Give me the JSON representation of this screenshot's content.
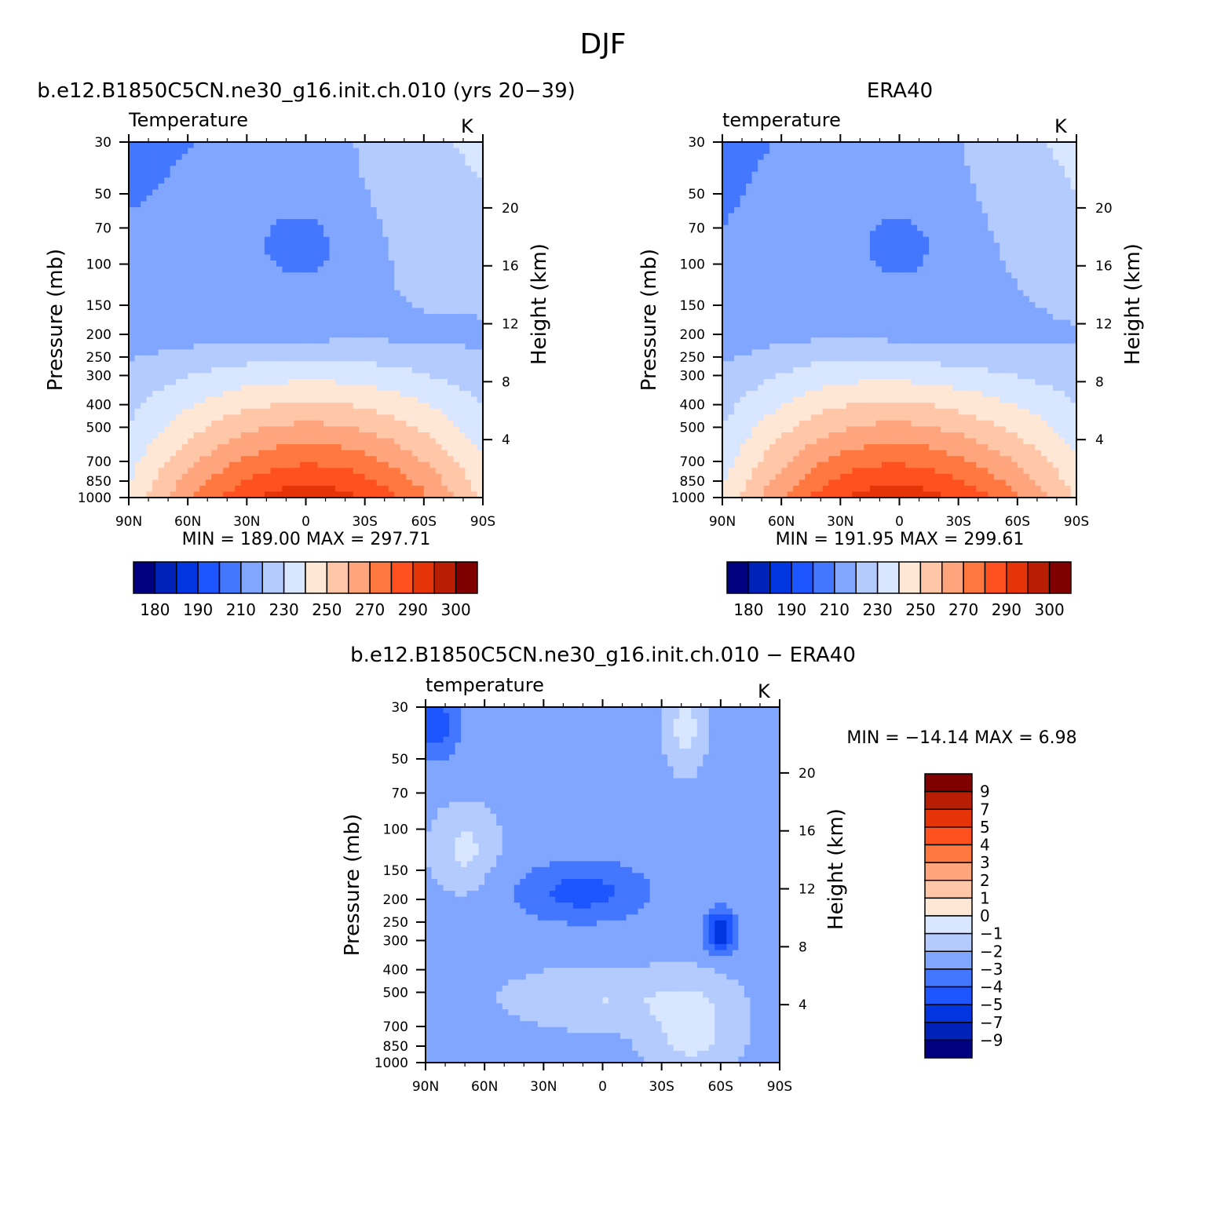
{
  "figure": {
    "title": "DJF"
  },
  "chart_data": [
    {
      "type": "heatmap",
      "panel_title": "b.e12.B1850C5CN.ne30_g16.init.ch.010 (yrs 20−39)",
      "left_label": "Temperature",
      "right_label": "K",
      "xlabel": "",
      "ylabel": "Pressure (mb)",
      "y2label": "Height (km)",
      "x_ticks": [
        "90N",
        "60N",
        "30N",
        "0",
        "30S",
        "60S",
        "90S"
      ],
      "x_range": [
        90,
        -90
      ],
      "y_ticks": [
        "30",
        "50",
        "70",
        "100",
        "150",
        "200",
        "250",
        "300",
        "400",
        "500",
        "700",
        "850",
        "1000"
      ],
      "y_range_mb": [
        30,
        1000
      ],
      "y_scale": "log",
      "y2_ticks": [
        "20",
        "16",
        "12",
        "8",
        "4"
      ],
      "stats": "MIN =  189.00   MAX =  297.71",
      "colorbar": {
        "orientation": "horizontal",
        "levels": [
          180,
          185,
          190,
          200,
          210,
          220,
          230,
          240,
          250,
          260,
          270,
          280,
          290,
          295,
          300
        ],
        "labels": [
          "180",
          "190",
          "210",
          "230",
          "250",
          "270",
          "290",
          "300"
        ],
        "colors": [
          "#000080",
          "#0022b8",
          "#0035e0",
          "#1d55ff",
          "#4477ff",
          "#80a6ff",
          "#b3cbff",
          "#d9e6ff",
          "#ffe7d6",
          "#ffc6a8",
          "#ffa57d",
          "#ff7840",
          "#ff5020",
          "#e43408",
          "#b81e04",
          "#800000"
        ]
      }
    },
    {
      "type": "heatmap",
      "panel_title": "ERA40",
      "left_label": "temperature",
      "right_label": "K",
      "xlabel": "",
      "ylabel": "Pressure (mb)",
      "y2label": "Height (km)",
      "x_ticks": [
        "90N",
        "60N",
        "30N",
        "0",
        "30S",
        "60S",
        "90S"
      ],
      "x_range": [
        90,
        -90
      ],
      "y_ticks": [
        "30",
        "50",
        "70",
        "100",
        "150",
        "200",
        "250",
        "300",
        "400",
        "500",
        "700",
        "850",
        "1000"
      ],
      "y_range_mb": [
        30,
        1000
      ],
      "y_scale": "log",
      "y2_ticks": [
        "20",
        "16",
        "12",
        "8",
        "4"
      ],
      "stats": "MIN =  191.95   MAX =  299.61",
      "colorbar": {
        "orientation": "horizontal",
        "levels": [
          180,
          185,
          190,
          200,
          210,
          220,
          230,
          240,
          250,
          260,
          270,
          280,
          290,
          295,
          300
        ],
        "labels": [
          "180",
          "190",
          "210",
          "230",
          "250",
          "270",
          "290",
          "300"
        ],
        "colors": [
          "#000080",
          "#0022b8",
          "#0035e0",
          "#1d55ff",
          "#4477ff",
          "#80a6ff",
          "#b3cbff",
          "#d9e6ff",
          "#ffe7d6",
          "#ffc6a8",
          "#ffa57d",
          "#ff7840",
          "#ff5020",
          "#e43408",
          "#b81e04",
          "#800000"
        ]
      }
    },
    {
      "type": "heatmap",
      "panel_title": "b.e12.B1850C5CN.ne30_g16.init.ch.010 − ERA40",
      "left_label": "temperature",
      "right_label": "K",
      "xlabel": "",
      "ylabel": "Pressure (mb)",
      "y2label": "Height (km)",
      "x_ticks": [
        "90N",
        "60N",
        "30N",
        "0",
        "30S",
        "60S",
        "90S"
      ],
      "x_range": [
        90,
        -90
      ],
      "y_ticks": [
        "30",
        "50",
        "70",
        "100",
        "150",
        "200",
        "250",
        "300",
        "400",
        "500",
        "700",
        "850",
        "1000"
      ],
      "y_range_mb": [
        30,
        1000
      ],
      "y_scale": "log",
      "y2_ticks": [
        "20",
        "16",
        "12",
        "8",
        "4"
      ],
      "stats": "MIN = −14.14   MAX =    6.98",
      "colorbar": {
        "orientation": "vertical",
        "levels": [
          -9,
          -7,
          -5,
          -4,
          -3,
          -2,
          -1,
          0,
          1,
          2,
          3,
          4,
          5,
          7,
          9
        ],
        "labels": [
          "9",
          "7",
          "5",
          "4",
          "3",
          "2",
          "1",
          "0",
          "−1",
          "−2",
          "−3",
          "−4",
          "−5",
          "−7",
          "−9"
        ],
        "colors": [
          "#000080",
          "#0022b8",
          "#0035e0",
          "#1d55ff",
          "#4477ff",
          "#80a6ff",
          "#b3cbff",
          "#d9e6ff",
          "#ffe7d6",
          "#ffc6a8",
          "#ffa57d",
          "#ff7840",
          "#ff5020",
          "#e43408",
          "#b81e04",
          "#800000"
        ]
      }
    }
  ]
}
